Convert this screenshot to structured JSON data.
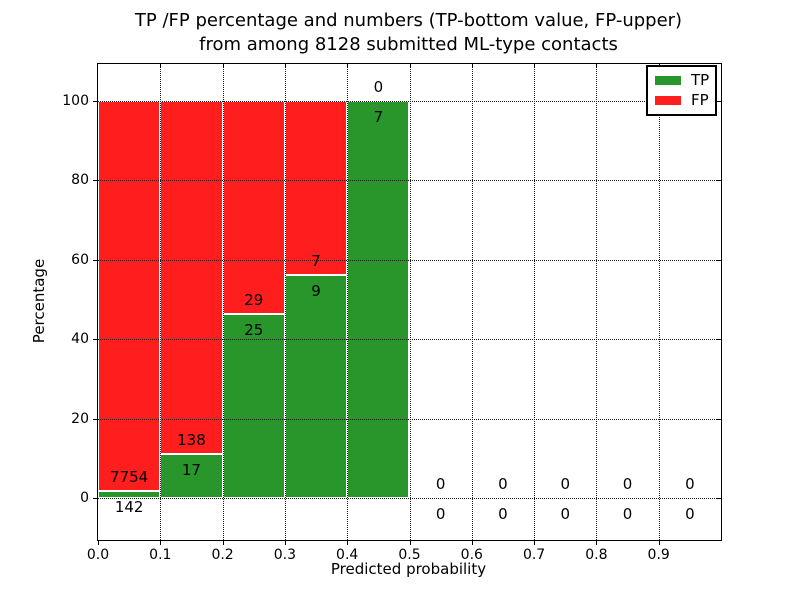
{
  "chart_data": {
    "type": "bar",
    "stacked": true,
    "normalized_to_100_percent": true,
    "title_lines": [
      "TP /FP percentage and numbers (TP-bottom value, FP-upper)",
      "from among 8128 submitted ML-type contacts"
    ],
    "total_submitted_contacts": 8128,
    "xlabel": "Predicted probability",
    "ylabel": "Percentage",
    "x_tick_labels": [
      "0.0",
      "0.1",
      "0.2",
      "0.3",
      "0.4",
      "0.5",
      "0.6",
      "0.7",
      "0.8",
      "0.9"
    ],
    "x_tick_values": [
      0.0,
      0.1,
      0.2,
      0.3,
      0.4,
      0.5,
      0.6,
      0.7,
      0.8,
      0.9
    ],
    "y_tick_labels": [
      "0",
      "20",
      "40",
      "60",
      "80",
      "100"
    ],
    "y_tick_values": [
      0,
      20,
      40,
      60,
      80,
      100
    ],
    "xlim": [
      0.0,
      1.0
    ],
    "ylim": [
      -10.7,
      109.3
    ],
    "grid": "dotted black, drawn above bars",
    "colors": {
      "tp": "#28962a",
      "fp": "#ff1e1e",
      "bar_edge": "#ffffff"
    },
    "legend": {
      "position": "upper right",
      "items": [
        {
          "label": "TP",
          "color": "#28962a"
        },
        {
          "label": "FP",
          "color": "#ff1e1e"
        }
      ]
    },
    "bins": [
      {
        "x_start": 0.0,
        "x_end": 0.1,
        "tp_count": 142,
        "fp_count": 7754,
        "tp_pct": 1.8,
        "fp_pct": 98.2,
        "tp_label": "142",
        "fp_label": "7754"
      },
      {
        "x_start": 0.1,
        "x_end": 0.2,
        "tp_count": 17,
        "fp_count": 138,
        "tp_pct": 10.97,
        "fp_pct": 89.03,
        "tp_label": "17",
        "fp_label": "138"
      },
      {
        "x_start": 0.2,
        "x_end": 0.3,
        "tp_count": 25,
        "fp_count": 29,
        "tp_pct": 46.3,
        "fp_pct": 53.7,
        "tp_label": "25",
        "fp_label": "29"
      },
      {
        "x_start": 0.3,
        "x_end": 0.4,
        "tp_count": 9,
        "fp_count": 7,
        "tp_pct": 56.25,
        "fp_pct": 43.75,
        "tp_label": "9",
        "fp_label": "7"
      },
      {
        "x_start": 0.4,
        "x_end": 0.5,
        "tp_count": 7,
        "fp_count": 0,
        "tp_pct": 100,
        "fp_pct": 0,
        "tp_label": "7",
        "fp_label": "0"
      },
      {
        "x_start": 0.5,
        "x_end": 0.6,
        "tp_count": 0,
        "fp_count": 0,
        "tp_pct": 0,
        "fp_pct": 0,
        "tp_label": "0",
        "fp_label": "0"
      },
      {
        "x_start": 0.6,
        "x_end": 0.7,
        "tp_count": 0,
        "fp_count": 0,
        "tp_pct": 0,
        "fp_pct": 0,
        "tp_label": "0",
        "fp_label": "0"
      },
      {
        "x_start": 0.7,
        "x_end": 0.8,
        "tp_count": 0,
        "fp_count": 0,
        "tp_pct": 0,
        "fp_pct": 0,
        "tp_label": "0",
        "fp_label": "0"
      },
      {
        "x_start": 0.8,
        "x_end": 0.9,
        "tp_count": 0,
        "fp_count": 0,
        "tp_pct": 0,
        "fp_pct": 0,
        "tp_label": "0",
        "fp_label": "0"
      },
      {
        "x_start": 0.9,
        "x_end": 1.0,
        "tp_count": 0,
        "fp_count": 0,
        "tp_pct": 0,
        "fp_pct": 0,
        "tp_label": "0",
        "fp_label": "0"
      }
    ]
  }
}
